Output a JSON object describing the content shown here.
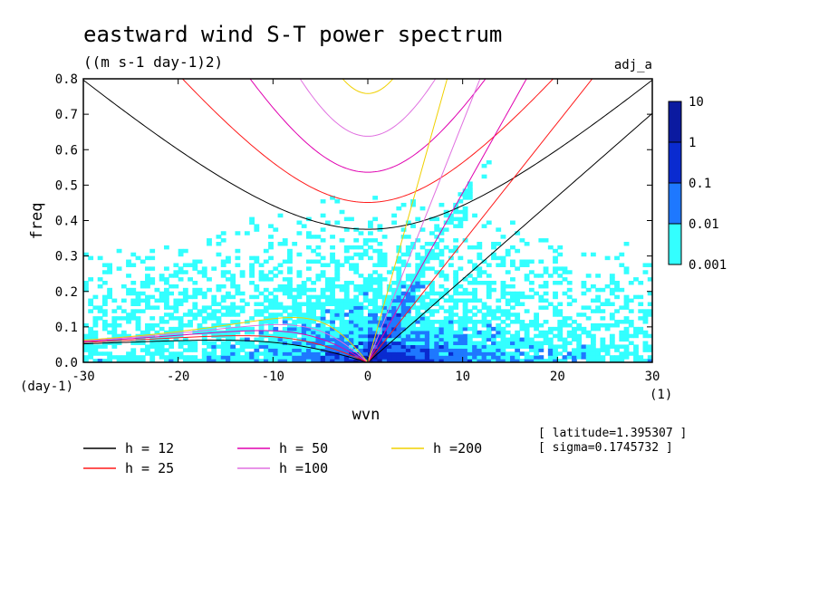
{
  "chart_data": {
    "type": "heatmap",
    "title": "eastward wind S-T power spectrum",
    "subtitle": "((m s-1 day-1)2)",
    "corner_label": "adj_a",
    "xlabel": "wvn",
    "ylabel": "freq",
    "x_unit": "(1)",
    "y_unit": "(day-1)",
    "xlim": [
      -30,
      30
    ],
    "ylim": [
      0,
      0.8
    ],
    "x_ticks": [
      -30,
      -20,
      -10,
      0,
      10,
      20,
      30
    ],
    "y_ticks": [
      0.0,
      0.1,
      0.2,
      0.3,
      0.4,
      0.5,
      0.6,
      0.7,
      0.8
    ],
    "x_tick_labels": [
      "-30",
      "-20",
      "-10",
      "0",
      "10",
      "20",
      "30"
    ],
    "y_tick_labels": [
      "0.0",
      "0.1",
      "0.2",
      "0.3",
      "0.4",
      "0.5",
      "0.6",
      "0.7",
      "0.8"
    ],
    "colorbar": {
      "levels": [
        0.001,
        0.01,
        0.1,
        1,
        10
      ],
      "labels": [
        "0.001",
        "0.01",
        "0.1",
        "1",
        "10"
      ],
      "colors": [
        "#33ffff",
        "#1e78ff",
        "#0a2bd0",
        "#0b1aa0",
        "#4c1fb0"
      ]
    },
    "dispersion_curves": [
      {
        "label": "h = 12",
        "h": 12,
        "color": "#000000"
      },
      {
        "label": "h = 25",
        "h": 25,
        "color": "#ff1a1a"
      },
      {
        "label": "h = 50",
        "h": 50,
        "color": "#e000b0"
      },
      {
        "label": "h =100",
        "h": 100,
        "color": "#e070e0"
      },
      {
        "label": "h =200",
        "h": 200,
        "color": "#f0d000"
      }
    ],
    "annotations": [
      "[ latitude=1.395307 ]",
      "[ sigma=0.1745732 ]"
    ]
  }
}
